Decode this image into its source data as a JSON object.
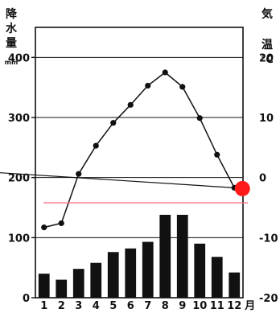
{
  "chart_data": {
    "type": "bar+line",
    "title": "",
    "left_axis": {
      "label_lines": [
        "降",
        "水",
        "量"
      ],
      "unit": "mm",
      "ylim": [
        0,
        450
      ],
      "ticks": [
        "0",
        "100",
        "200",
        "300",
        "400"
      ]
    },
    "right_axis": {
      "label_lines": [
        "気",
        "温"
      ],
      "unit": "℃",
      "ylim": [
        -20,
        25
      ],
      "ticks": [
        "20",
        "10",
        "0",
        "-10",
        "-20"
      ]
    },
    "categories": [
      "1",
      "2",
      "3",
      "4",
      "5",
      "6",
      "7",
      "8",
      "9",
      "10",
      "11",
      "12"
    ],
    "month_suffix": "月",
    "precipitation_mm": [
      40,
      30,
      48,
      58,
      76,
      82,
      93,
      138,
      138,
      90,
      68,
      42
    ],
    "temperature_c": [
      -8.3,
      -7.6,
      0.6,
      5.3,
      9.1,
      12.1,
      15.3,
      17.5,
      15.1,
      9.9,
      3.8,
      -1.7
    ],
    "grid": true,
    "annotations": {
      "point_label": "",
      "marker_color": "#ff1a1a",
      "pink_line_color": "#ff6b80"
    }
  }
}
